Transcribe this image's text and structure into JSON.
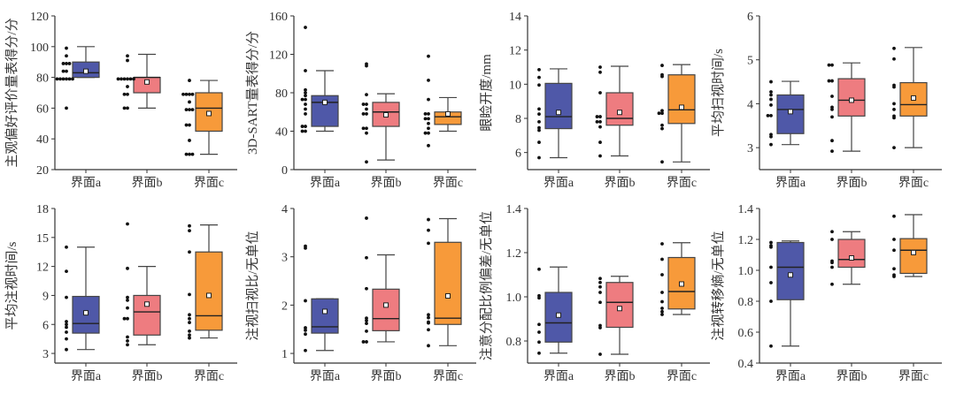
{
  "colors": {
    "界面a": "#4f58a8",
    "界面b": "#ee7c80",
    "界面c": "#f79a3a"
  },
  "chart_data": [
    {
      "type": "box",
      "ylabel": "主观偏好评价量表得分/分",
      "categories": [
        "界面a",
        "界面b",
        "界面c"
      ],
      "ylim": [
        20,
        120
      ],
      "yticks": [
        "20",
        "40",
        "60",
        "80",
        "100",
        "120"
      ],
      "boxes": [
        {
          "q1": 80,
          "median": 83,
          "q3": 90,
          "low": 80,
          "high": 100,
          "mean": 84,
          "points": [
            99,
            94,
            89,
            89,
            89,
            84,
            84,
            79,
            79,
            79,
            79,
            79,
            79,
            60
          ]
        },
        {
          "q1": 70,
          "median": 80,
          "q3": 80,
          "low": 60,
          "high": 95,
          "mean": 77,
          "points": [
            94,
            91,
            79,
            79,
            79,
            79,
            79,
            79,
            74,
            69,
            69,
            60,
            60
          ]
        },
        {
          "q1": 45,
          "median": 60,
          "q3": 70,
          "low": 30,
          "high": 78,
          "mean": 56.5,
          "points": [
            78,
            69,
            69,
            69,
            69,
            64,
            59,
            59,
            59,
            49,
            49,
            39,
            30,
            30,
            30
          ]
        }
      ]
    },
    {
      "type": "box",
      "ylabel": "3D-SART量表得分/分",
      "categories": [
        "界面a",
        "界面b",
        "界面c"
      ],
      "ylim": [
        0,
        160
      ],
      "yticks": [
        "0",
        "40",
        "80",
        "120",
        "160"
      ],
      "boxes": [
        {
          "q1": 45,
          "median": 70,
          "q3": 77,
          "low": 40,
          "high": 103,
          "mean": 70,
          "points": [
            148,
            103,
            83,
            80,
            77,
            73,
            73,
            68,
            63,
            58,
            45,
            45,
            40,
            40
          ]
        },
        {
          "q1": 45,
          "median": 60,
          "q3": 70,
          "low": 10,
          "high": 79,
          "mean": 57,
          "points": [
            110,
            108,
            78,
            68,
            68,
            63,
            58,
            58,
            43,
            43,
            38,
            8
          ]
        },
        {
          "q1": 47,
          "median": 55,
          "q3": 60,
          "low": 40,
          "high": 75,
          "mean": 58,
          "points": [
            118,
            93,
            73,
            58,
            58,
            53,
            53,
            48,
            43,
            38,
            38,
            25
          ]
        }
      ]
    },
    {
      "type": "box",
      "ylabel": "眼睑开度/mm",
      "categories": [
        "界面a",
        "界面b",
        "界面c"
      ],
      "ylim": [
        5,
        14
      ],
      "yticks": [
        "6",
        "8",
        "10",
        "12",
        "14"
      ],
      "boxes": [
        {
          "q1": 7.4,
          "median": 8.1,
          "q3": 10.05,
          "low": 5.7,
          "high": 10.9,
          "mean": 8.35,
          "points": [
            10.85,
            10.4,
            9.95,
            8.55,
            8.25,
            7.8,
            7.45,
            7.3,
            6.6,
            5.7
          ]
        },
        {
          "q1": 7.6,
          "median": 8.0,
          "q3": 9.5,
          "low": 5.8,
          "high": 11.05,
          "mean": 8.35,
          "points": [
            11.0,
            10.7,
            9.5,
            8.1,
            8.1,
            7.8,
            7.8,
            7.5,
            6.6,
            5.8
          ]
        },
        {
          "q1": 7.7,
          "median": 8.5,
          "q3": 10.55,
          "low": 5.45,
          "high": 11.15,
          "mean": 8.65,
          "points": [
            11.1,
            10.55,
            10.45,
            8.45,
            8.3,
            8.3,
            7.6,
            7.4,
            5.45
          ]
        }
      ]
    },
    {
      "type": "box",
      "ylabel": "平均扫视时间/s",
      "categories": [
        "界面a",
        "界面b",
        "界面c"
      ],
      "ylim": [
        2.5,
        6
      ],
      "yticks": [
        "3",
        "4",
        "5",
        "6"
      ],
      "boxes": [
        {
          "q1": 3.32,
          "median": 3.87,
          "q3": 4.2,
          "low": 3.07,
          "high": 4.51,
          "mean": 3.82,
          "points": [
            4.5,
            4.27,
            4.2,
            4.1,
            3.97,
            3.73,
            3.73,
            3.3,
            3.25,
            3.07
          ]
        },
        {
          "q1": 3.72,
          "median": 4.08,
          "q3": 4.57,
          "low": 2.92,
          "high": 4.93,
          "mean": 4.08,
          "points": [
            4.88,
            4.88,
            4.52,
            4.52,
            4.17,
            3.92,
            3.87,
            3.7,
            3.16,
            2.92
          ]
        },
        {
          "q1": 3.72,
          "median": 3.98,
          "q3": 4.48,
          "low": 3.0,
          "high": 5.28,
          "mean": 4.13,
          "points": [
            5.26,
            5.02,
            4.42,
            4.38,
            4.0,
            3.87,
            3.72,
            3.68,
            3.0
          ]
        }
      ]
    },
    {
      "type": "box",
      "ylabel": "平均注视时间/s",
      "categories": [
        "界面a",
        "界面b",
        "界面c"
      ],
      "ylim": [
        2,
        18
      ],
      "yticks": [
        "3",
        "6",
        "9",
        "12",
        "15",
        "18"
      ],
      "boxes": [
        {
          "q1": 5.1,
          "median": 6.1,
          "q3": 8.9,
          "low": 3.4,
          "high": 14,
          "mean": 7.2,
          "points": [
            14,
            11.5,
            8.8,
            6.3,
            6.0,
            5.7,
            5.2,
            4.5,
            3.4
          ]
        },
        {
          "q1": 4.9,
          "median": 7.3,
          "q3": 9.0,
          "low": 3.9,
          "high": 12,
          "mean": 8.1,
          "points": [
            16.4,
            11.8,
            8.8,
            8.5,
            7.7,
            6.6,
            6.6,
            4.7,
            4.3,
            3.9
          ]
        },
        {
          "q1": 5.4,
          "median": 6.9,
          "q3": 13.5,
          "low": 4.6,
          "high": 16.3,
          "mean": 9.0,
          "points": [
            16.2,
            15.7,
            13.5,
            9.1,
            7.0,
            6.6,
            6.2,
            5.3,
            4.9,
            4.6
          ]
        }
      ]
    },
    {
      "type": "box",
      "ylabel": "注视扫视比/无单位",
      "categories": [
        "界面a",
        "界面b",
        "界面c"
      ],
      "ylim": [
        0.8,
        4
      ],
      "yticks": [
        "1",
        "2",
        "3",
        "4"
      ],
      "boxes": [
        {
          "q1": 1.42,
          "median": 1.55,
          "q3": 2.13,
          "low": 1.06,
          "high": 2.13,
          "mean": 1.87,
          "points": [
            3.22,
            3.18,
            2.09,
            1.53,
            1.48,
            1.4,
            1.06
          ]
        },
        {
          "q1": 1.47,
          "median": 1.72,
          "q3": 2.33,
          "low": 1.24,
          "high": 3.04,
          "mean": 2.0,
          "points": [
            3.8,
            2.98,
            2.34,
            1.73,
            1.68,
            1.62,
            1.46,
            1.24,
            1.24
          ]
        },
        {
          "q1": 1.6,
          "median": 1.73,
          "q3": 3.3,
          "low": 1.16,
          "high": 3.79,
          "mean": 2.19,
          "points": [
            3.77,
            3.55,
            3.28,
            1.8,
            1.74,
            1.65,
            1.63,
            1.49,
            1.16
          ]
        }
      ]
    },
    {
      "type": "box",
      "ylabel": "注意分配比例偏差/无单位",
      "categories": [
        "界面a",
        "界面b",
        "界面c"
      ],
      "ylim": [
        0.7,
        1.4
      ],
      "yticks": [
        "0.8",
        "1.0",
        "1.2",
        "1.4"
      ],
      "boxes": [
        {
          "q1": 0.795,
          "median": 0.882,
          "q3": 1.02,
          "low": 0.745,
          "high": 1.135,
          "mean": 0.917,
          "points": [
            1.125,
            1.005,
            0.995,
            0.875,
            0.84,
            0.795,
            0.745
          ]
        },
        {
          "q1": 0.862,
          "median": 0.975,
          "q3": 1.065,
          "low": 0.74,
          "high": 1.093,
          "mean": 0.947,
          "points": [
            1.083,
            1.065,
            1.045,
            1.02,
            0.975,
            0.87,
            0.86,
            0.74
          ]
        },
        {
          "q1": 0.945,
          "median": 1.024,
          "q3": 1.178,
          "low": 0.92,
          "high": 1.245,
          "mean": 1.058,
          "points": [
            1.24,
            1.17,
            1.1,
            1.02,
            0.978,
            0.948,
            0.933,
            0.92
          ]
        }
      ]
    },
    {
      "type": "box",
      "ylabel": "注视转移熵/无单位",
      "categories": [
        "界面a",
        "界面b",
        "界面c"
      ],
      "ylim": [
        0.4,
        1.4
      ],
      "yticks": [
        "0.4",
        "0.6",
        "0.8",
        "1.0",
        "1.2",
        "1.4"
      ],
      "boxes": [
        {
          "q1": 0.81,
          "median": 1.02,
          "q3": 1.18,
          "low": 0.51,
          "high": 1.19,
          "mean": 0.97,
          "points": [
            1.18,
            1.16,
            1.15,
            1.02,
            0.92,
            0.8,
            0.51
          ]
        },
        {
          "q1": 1.02,
          "median": 1.07,
          "q3": 1.2,
          "low": 0.91,
          "high": 1.25,
          "mean": 1.08,
          "points": [
            1.25,
            1.2,
            1.06,
            1.05,
            1.02,
            0.91
          ]
        },
        {
          "q1": 0.98,
          "median": 1.13,
          "q3": 1.205,
          "low": 0.96,
          "high": 1.36,
          "mean": 1.115,
          "points": [
            1.35,
            1.2,
            1.13,
            1.01,
            0.97,
            0.96
          ]
        }
      ]
    }
  ]
}
